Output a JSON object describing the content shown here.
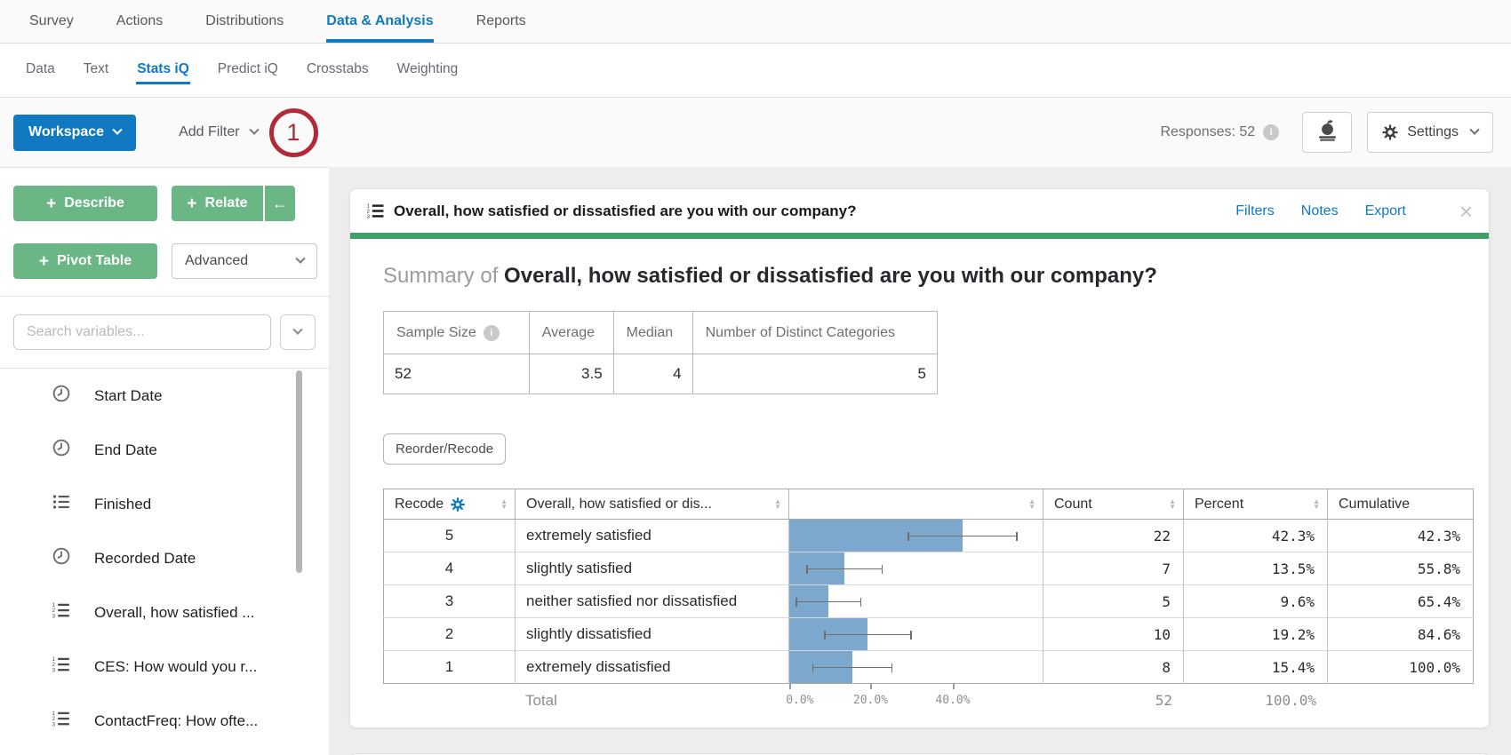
{
  "topnav": {
    "items": [
      {
        "label": "Survey",
        "active": false
      },
      {
        "label": "Actions",
        "active": false
      },
      {
        "label": "Distributions",
        "active": false
      },
      {
        "label": "Data & Analysis",
        "active": true
      },
      {
        "label": "Reports",
        "active": false
      }
    ]
  },
  "subnav": {
    "items": [
      {
        "label": "Data",
        "active": false
      },
      {
        "label": "Text",
        "active": false
      },
      {
        "label": "Stats iQ",
        "active": true
      },
      {
        "label": "Predict iQ",
        "active": false
      },
      {
        "label": "Crosstabs",
        "active": false
      },
      {
        "label": "Weighting",
        "active": false
      }
    ]
  },
  "toolbar": {
    "workspace_label": "Workspace",
    "add_filter_label": "Add Filter",
    "annotation_number": "1",
    "responses_label": "Responses: 52",
    "settings_label": "Settings"
  },
  "sidebar": {
    "describe_label": "Describe",
    "relate_label": "Relate",
    "collapse_arrow": "←",
    "pivot_label": "Pivot Table",
    "advanced_label": "Advanced",
    "search_placeholder": "Search variables...",
    "variables": [
      {
        "label": "Start Date",
        "icon": "clock-icon"
      },
      {
        "label": "End Date",
        "icon": "clock-icon"
      },
      {
        "label": "Finished",
        "icon": "bulleted-list-icon"
      },
      {
        "label": "Recorded Date",
        "icon": "clock-icon"
      },
      {
        "label": "Overall, how satisfied ...",
        "icon": "numbered-list-icon"
      },
      {
        "label": "CES: How would you r...",
        "icon": "numbered-list-icon"
      },
      {
        "label": "ContactFreq: How ofte...",
        "icon": "numbered-list-icon"
      }
    ]
  },
  "card": {
    "title": "Overall, how satisfied or dissatisfied are you with our company?",
    "links": {
      "filters": "Filters",
      "notes": "Notes",
      "export": "Export"
    },
    "close_glyph": "×",
    "summary": {
      "prefix": "Summary of",
      "title": "Overall, how satisfied or dissatisfied are you with our company?"
    },
    "stats": {
      "headers": [
        "Sample Size",
        "Average",
        "Median",
        "Number of Distinct Categories"
      ],
      "values": [
        "52",
        "3.5",
        "4",
        "5"
      ]
    },
    "reorder_label": "Reorder/Recode",
    "table": {
      "headers": {
        "recode": "Recode",
        "question": "Overall, how satisfied or dis...",
        "count": "Count",
        "percent": "Percent",
        "cumulative": "Cumulative"
      },
      "rows": [
        {
          "recode": "5",
          "label": "extremely satisfied",
          "count": "22",
          "percent": "42.3%",
          "cumulative": "42.3%",
          "bar_pct": 42.3,
          "ci_low": 28.9,
          "ci_high": 55.7
        },
        {
          "recode": "4",
          "label": "slightly satisfied",
          "count": "7",
          "percent": "13.5%",
          "cumulative": "55.8%",
          "bar_pct": 13.5,
          "ci_low": 4.2,
          "ci_high": 22.8
        },
        {
          "recode": "3",
          "label": "neither satisfied nor dissatisfied",
          "count": "5",
          "percent": "9.6%",
          "cumulative": "65.4%",
          "bar_pct": 9.6,
          "ci_low": 1.6,
          "ci_high": 17.6
        },
        {
          "recode": "2",
          "label": "slightly dissatisfied",
          "count": "10",
          "percent": "19.2%",
          "cumulative": "84.6%",
          "bar_pct": 19.2,
          "ci_low": 8.5,
          "ci_high": 29.9
        },
        {
          "recode": "1",
          "label": "extremely dissatisfied",
          "count": "8",
          "percent": "15.4%",
          "cumulative": "100.0%",
          "bar_pct": 15.4,
          "ci_low": 5.6,
          "ci_high": 25.2
        }
      ],
      "axis_labels": [
        "0.0%",
        "20.0%",
        "40.0%"
      ],
      "total": {
        "label": "Total",
        "count": "52",
        "percent": "100.0%"
      }
    }
  },
  "colors": {
    "accent_blue": "#1179c2",
    "button_green": "#6bb685",
    "header_green": "#3fa06a",
    "bar_blue": "#7da8cd",
    "annotation_red": "#b02a37"
  }
}
